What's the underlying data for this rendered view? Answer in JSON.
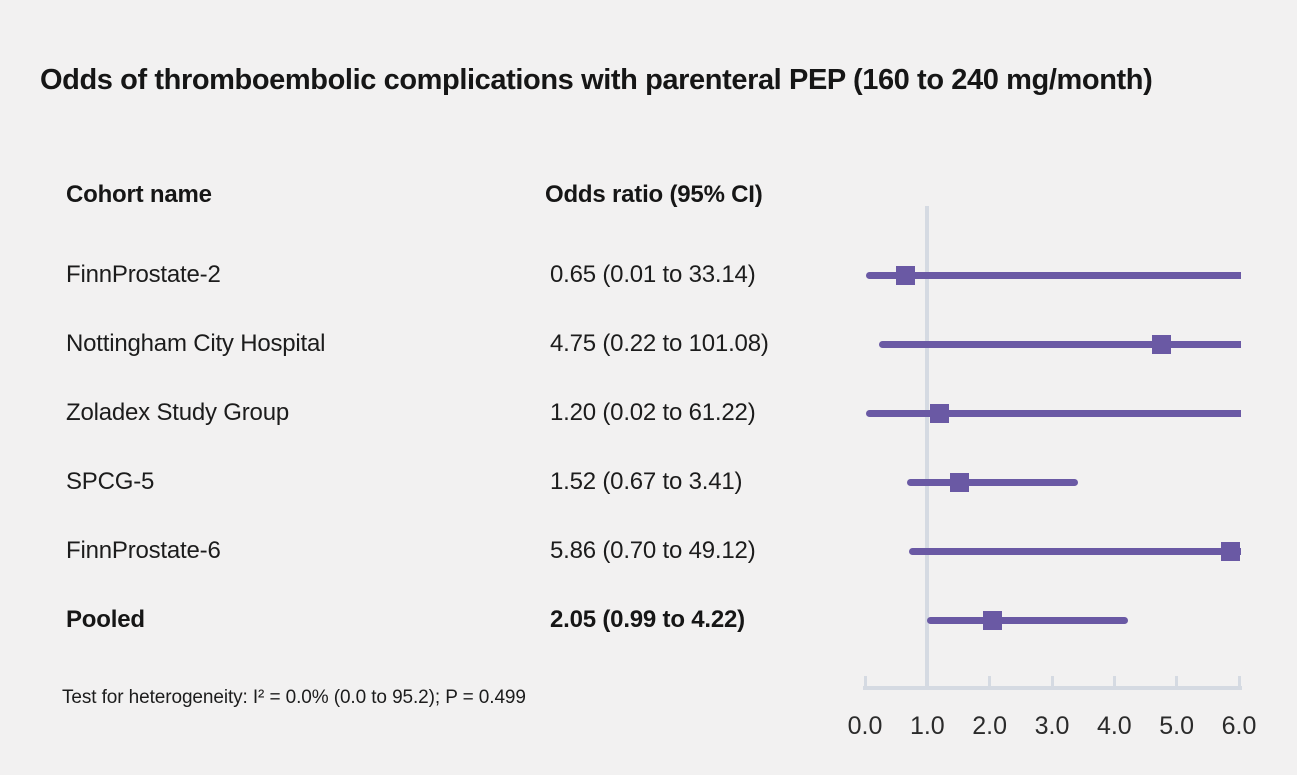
{
  "colors": {
    "background": "#f2f1f1",
    "marker_purple": "#6a59a4",
    "axis_gray": "#d5dae2",
    "text_dark": "#161616"
  },
  "chart_data": {
    "type": "forest",
    "title": "Odds of thromboembolic complications with parenteral PEP (160 to 240 mg/month)",
    "columns": [
      "Cohort name",
      "Odds ratio (95% CI)"
    ],
    "xlabel": "",
    "xlim": [
      0.0,
      6.0
    ],
    "x_tick_labels": [
      "0.0",
      "1.0",
      "2.0",
      "3.0",
      "4.0",
      "5.0",
      "6.0"
    ],
    "x_tick_values": [
      0.0,
      1.0,
      2.0,
      3.0,
      4.0,
      5.0,
      6.0
    ],
    "reference_line_x": 1.0,
    "grid": false,
    "rows": [
      {
        "cohort": "FinnProstate-2",
        "or": 0.65,
        "ci_low": 0.01,
        "ci_high": 33.14,
        "label": "0.65 (0.01 to 33.14)",
        "bold": false
      },
      {
        "cohort": "Nottingham City Hospital",
        "or": 4.75,
        "ci_low": 0.22,
        "ci_high": 101.08,
        "label": "4.75 (0.22 to 101.08)",
        "bold": false
      },
      {
        "cohort": "Zoladex Study Group",
        "or": 1.2,
        "ci_low": 0.02,
        "ci_high": 61.22,
        "label": "1.20 (0.02 to 61.22)",
        "bold": false
      },
      {
        "cohort": "SPCG-5",
        "or": 1.52,
        "ci_low": 0.67,
        "ci_high": 3.41,
        "label": "1.52 (0.67 to 3.41)",
        "bold": false
      },
      {
        "cohort": "FinnProstate-6",
        "or": 5.86,
        "ci_low": 0.7,
        "ci_high": 49.12,
        "label": "5.86 (0.70 to 49.12)",
        "bold": false
      },
      {
        "cohort": "Pooled",
        "or": 2.05,
        "ci_low": 0.99,
        "ci_high": 4.22,
        "label": "2.05 (0.99 to 4.22)",
        "bold": true
      }
    ],
    "footnote": "Test for heterogeneity: I² = 0.0% (0.0 to 95.2); P = 0.499"
  }
}
